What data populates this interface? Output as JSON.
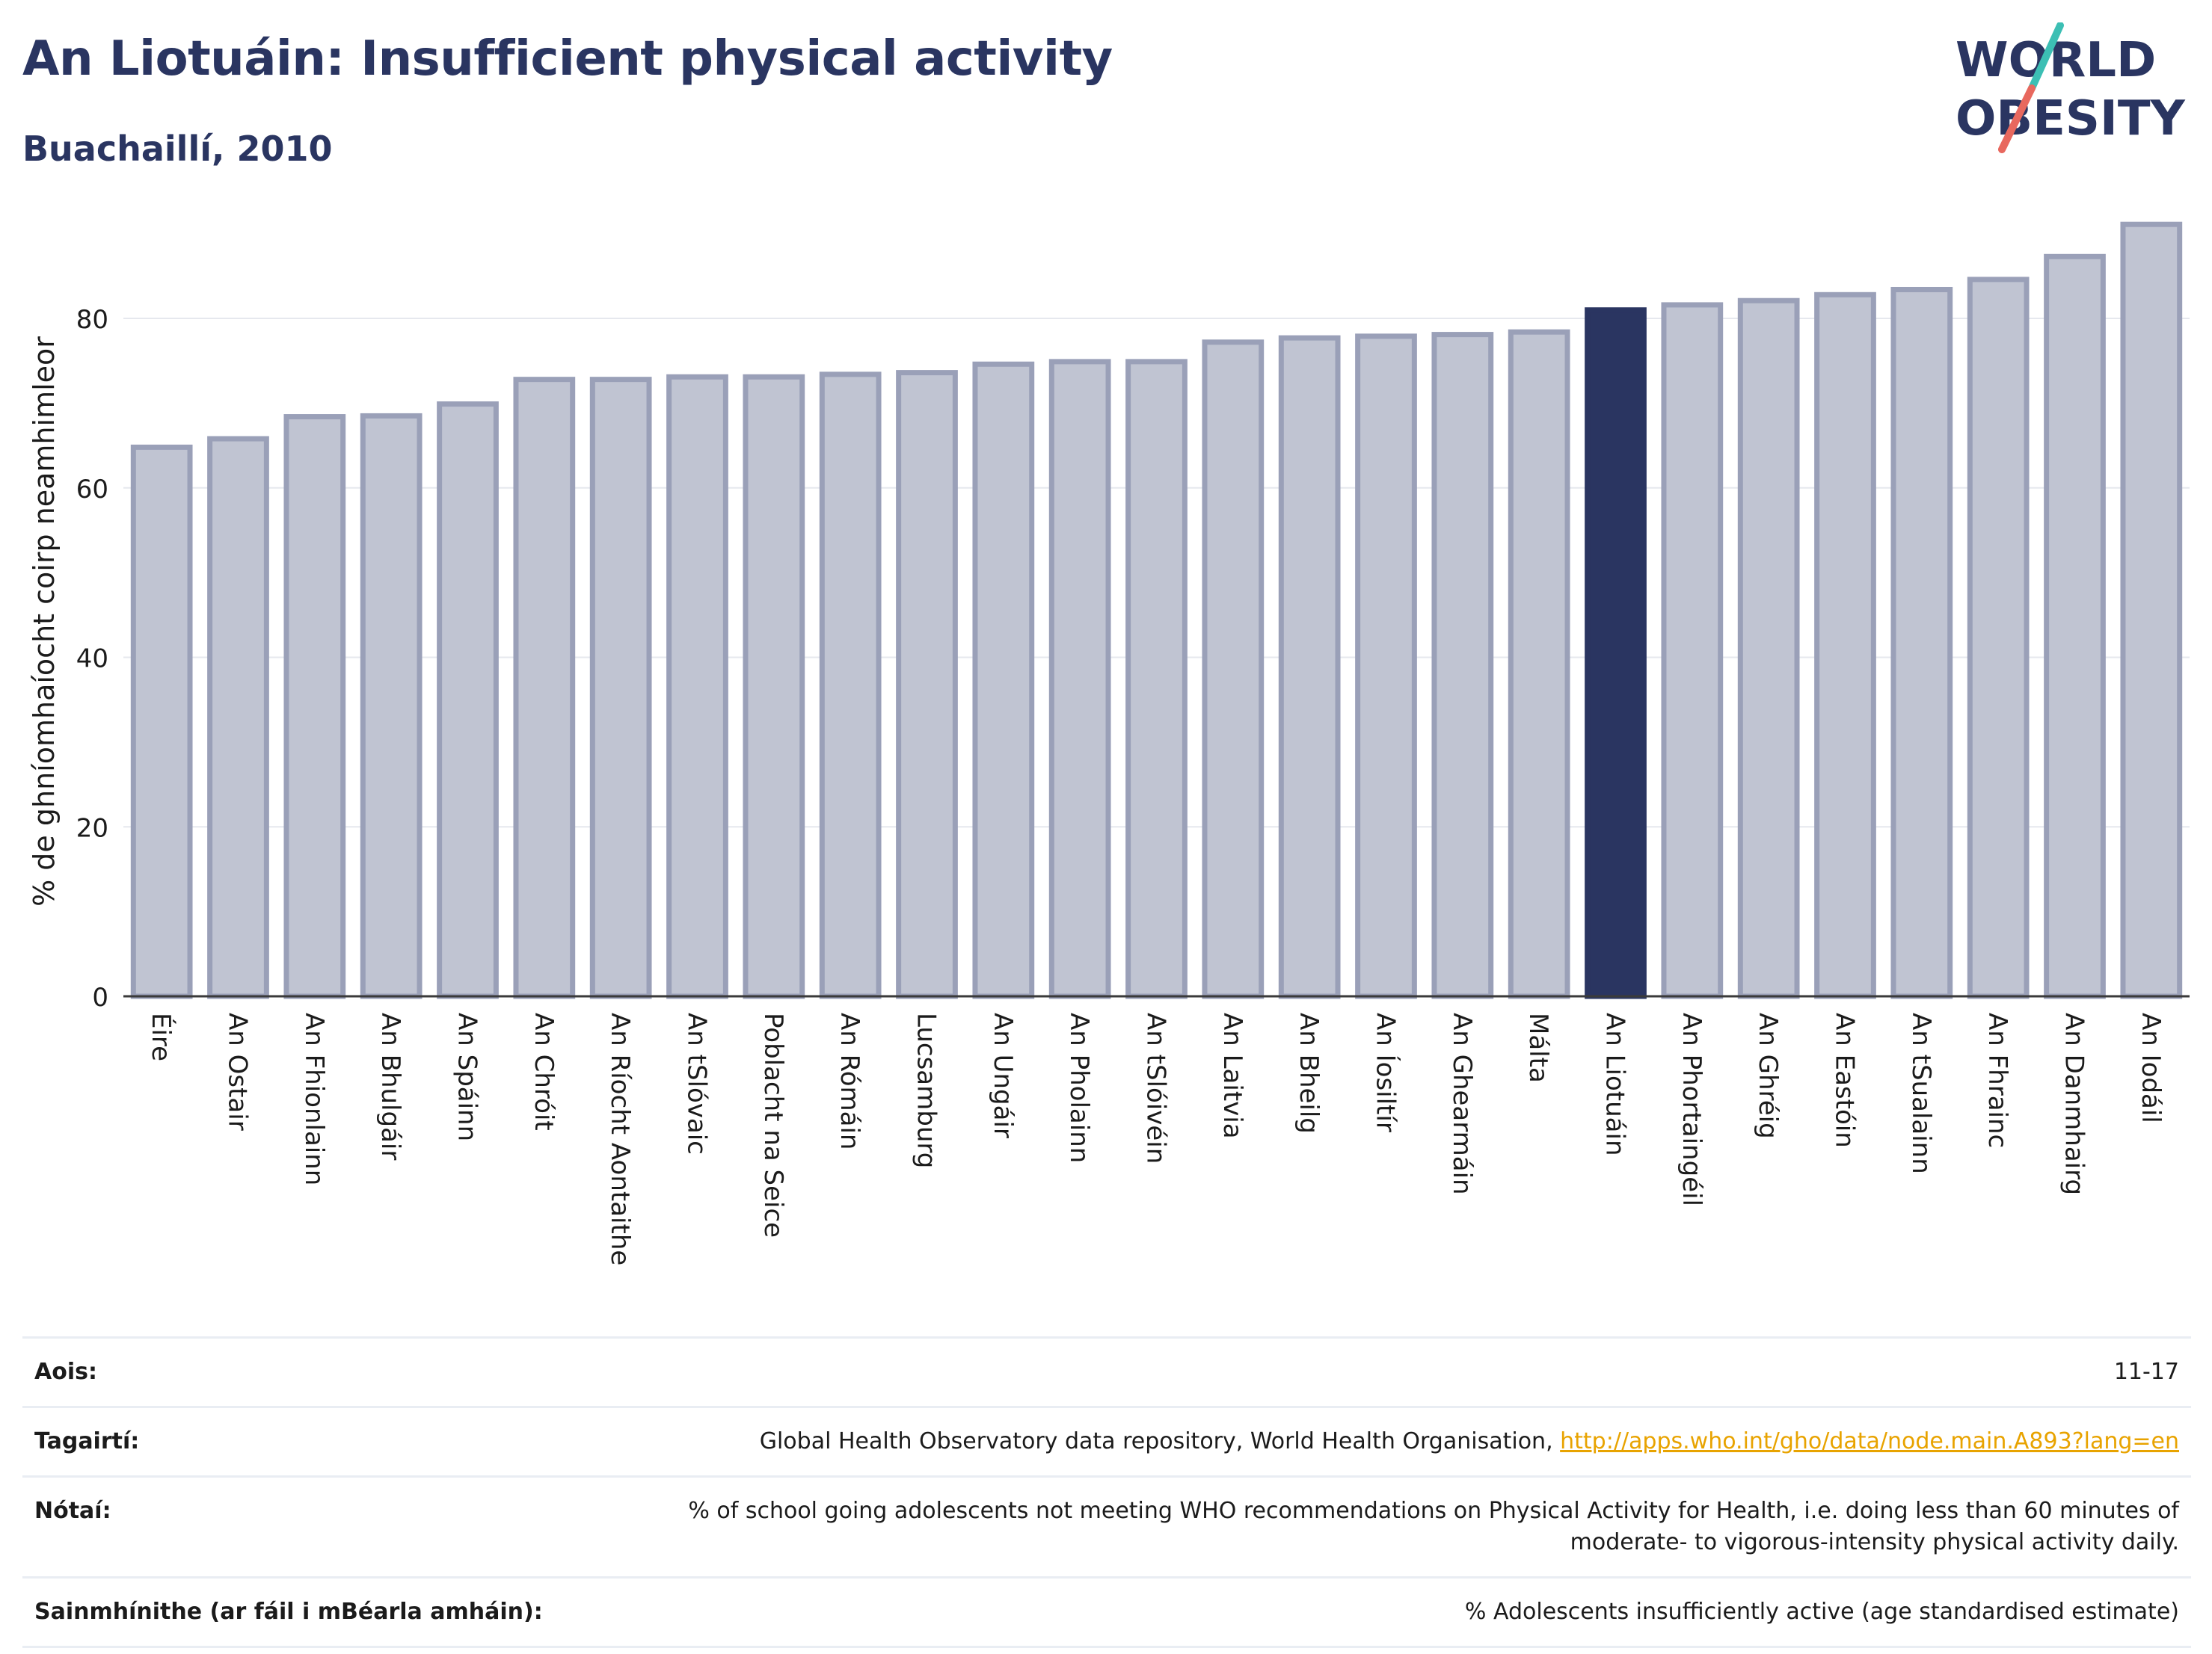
{
  "header": {
    "title": "An Liotuáin: Insufficient physical activity",
    "subtitle": "Buachaillí, 2010"
  },
  "logo": {
    "line1": "WORLD",
    "line2": "OBESITY"
  },
  "colors": {
    "title": "#2a3561",
    "bar_default": "#c0c4d2",
    "bar_border": "#9aa0b8",
    "bar_highlight": "#2a3561",
    "logo_teal": "#3cbfb4",
    "logo_red": "#e8685e",
    "link": "#e8a300"
  },
  "chart_data": {
    "type": "bar",
    "ylabel": "% de ghníomhaíocht coirp neamhimleor",
    "ylim": [
      0,
      92
    ],
    "yticks": [
      0,
      20,
      40,
      60,
      80
    ],
    "grid": true,
    "highlight": "An Liotuáin",
    "categories": [
      "Éire",
      "An Ostair",
      "An Fhionlainn",
      "An Bhulgáir",
      "An Spáinn",
      "An Chróit",
      "An Ríocht Aontaithe",
      "An tSlóvaic",
      "Poblacht na Seice",
      "An Rómáin",
      "Lucsamburg",
      "An Ungáir",
      "An Pholainn",
      "An tSlóivéin",
      "An Laitvia",
      "An Bheilg",
      "An Íosiltír",
      "An Ghearmáin",
      "Málta",
      "An Liotuáin",
      "An Phortaingéil",
      "An Ghréig",
      "An Eastóin",
      "An tSualainn",
      "An Fhrainc",
      "An Danmhairg",
      "An Iodáil"
    ],
    "values": [
      64.8,
      65.8,
      68.4,
      68.5,
      69.9,
      72.8,
      72.8,
      73.1,
      73.1,
      73.4,
      73.6,
      74.6,
      74.9,
      74.9,
      77.2,
      77.7,
      77.9,
      78.1,
      78.4,
      81.0,
      81.6,
      82.1,
      82.8,
      83.4,
      84.6,
      87.3,
      91.1
    ]
  },
  "info": {
    "age_label": "Aois:",
    "age_value": "11-17",
    "refs_label": "Tagairtí:",
    "refs_text": "Global Health Observatory data repository, World Health Organisation, ",
    "refs_link": "http://apps.who.int/gho/data/node.main.A893?lang=en",
    "notes_label": "Nótaí:",
    "notes_text": "% of school going adolescents not meeting WHO recommendations on Physical Activity for Health, i.e. doing less than 60 minutes of moderate- to vigorous-intensity physical activity daily.",
    "defs_label": "Sainmhínithe (ar fáil i mBéarla amháin):",
    "defs_text": "% Adolescents insufficiently active (age standardised estimate)"
  }
}
